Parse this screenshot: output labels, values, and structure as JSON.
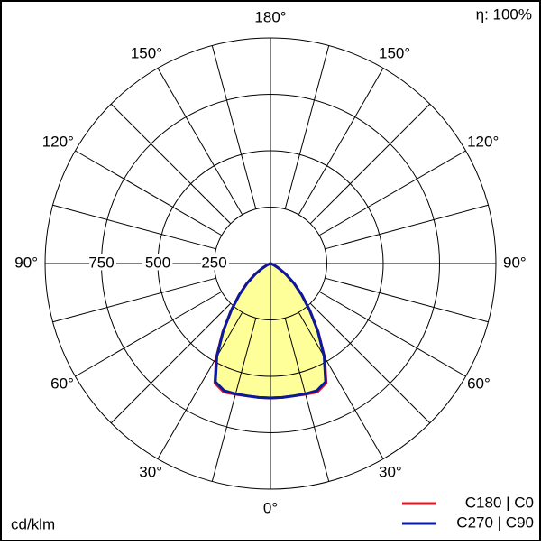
{
  "chart_data": {
    "type": "polar",
    "efficiency_label": "η: 100%",
    "unit_label": "cd/klm",
    "rlim": [
      0,
      1000
    ],
    "rticks": [
      250,
      500,
      750
    ],
    "thetalim": [
      0,
      180
    ],
    "thetagrid": 15,
    "thetaticks": [
      {
        "value": 0,
        "label": "0°"
      },
      {
        "value": 30,
        "label": "30°"
      },
      {
        "value": 60,
        "label": "60°"
      },
      {
        "value": 90,
        "label": "90°"
      },
      {
        "value": 120,
        "label": "120°"
      },
      {
        "value": 150,
        "label": "150°"
      },
      {
        "value": 180,
        "label": "180°"
      }
    ],
    "fill_color": "#ffff99",
    "theta": [
      0,
      5,
      10,
      15,
      20,
      25,
      30,
      35,
      40,
      45,
      50,
      55,
      60,
      65,
      70,
      75,
      80,
      85,
      90
    ],
    "series": [
      {
        "name": "C180 | C0",
        "color": "#e8131f",
        "values": [
          596,
          596,
          596,
          600,
          606,
          584,
          480,
          368,
          272,
          196,
          136,
          84,
          44,
          20,
          8,
          4,
          2,
          1,
          0
        ]
      },
      {
        "name": "C270 | C90",
        "color": "#0a1a9c",
        "values": [
          596,
          596,
          596,
          598,
          600,
          578,
          476,
          366,
          270,
          195,
          135,
          83,
          44,
          20,
          8,
          4,
          2,
          1,
          0
        ]
      }
    ]
  }
}
